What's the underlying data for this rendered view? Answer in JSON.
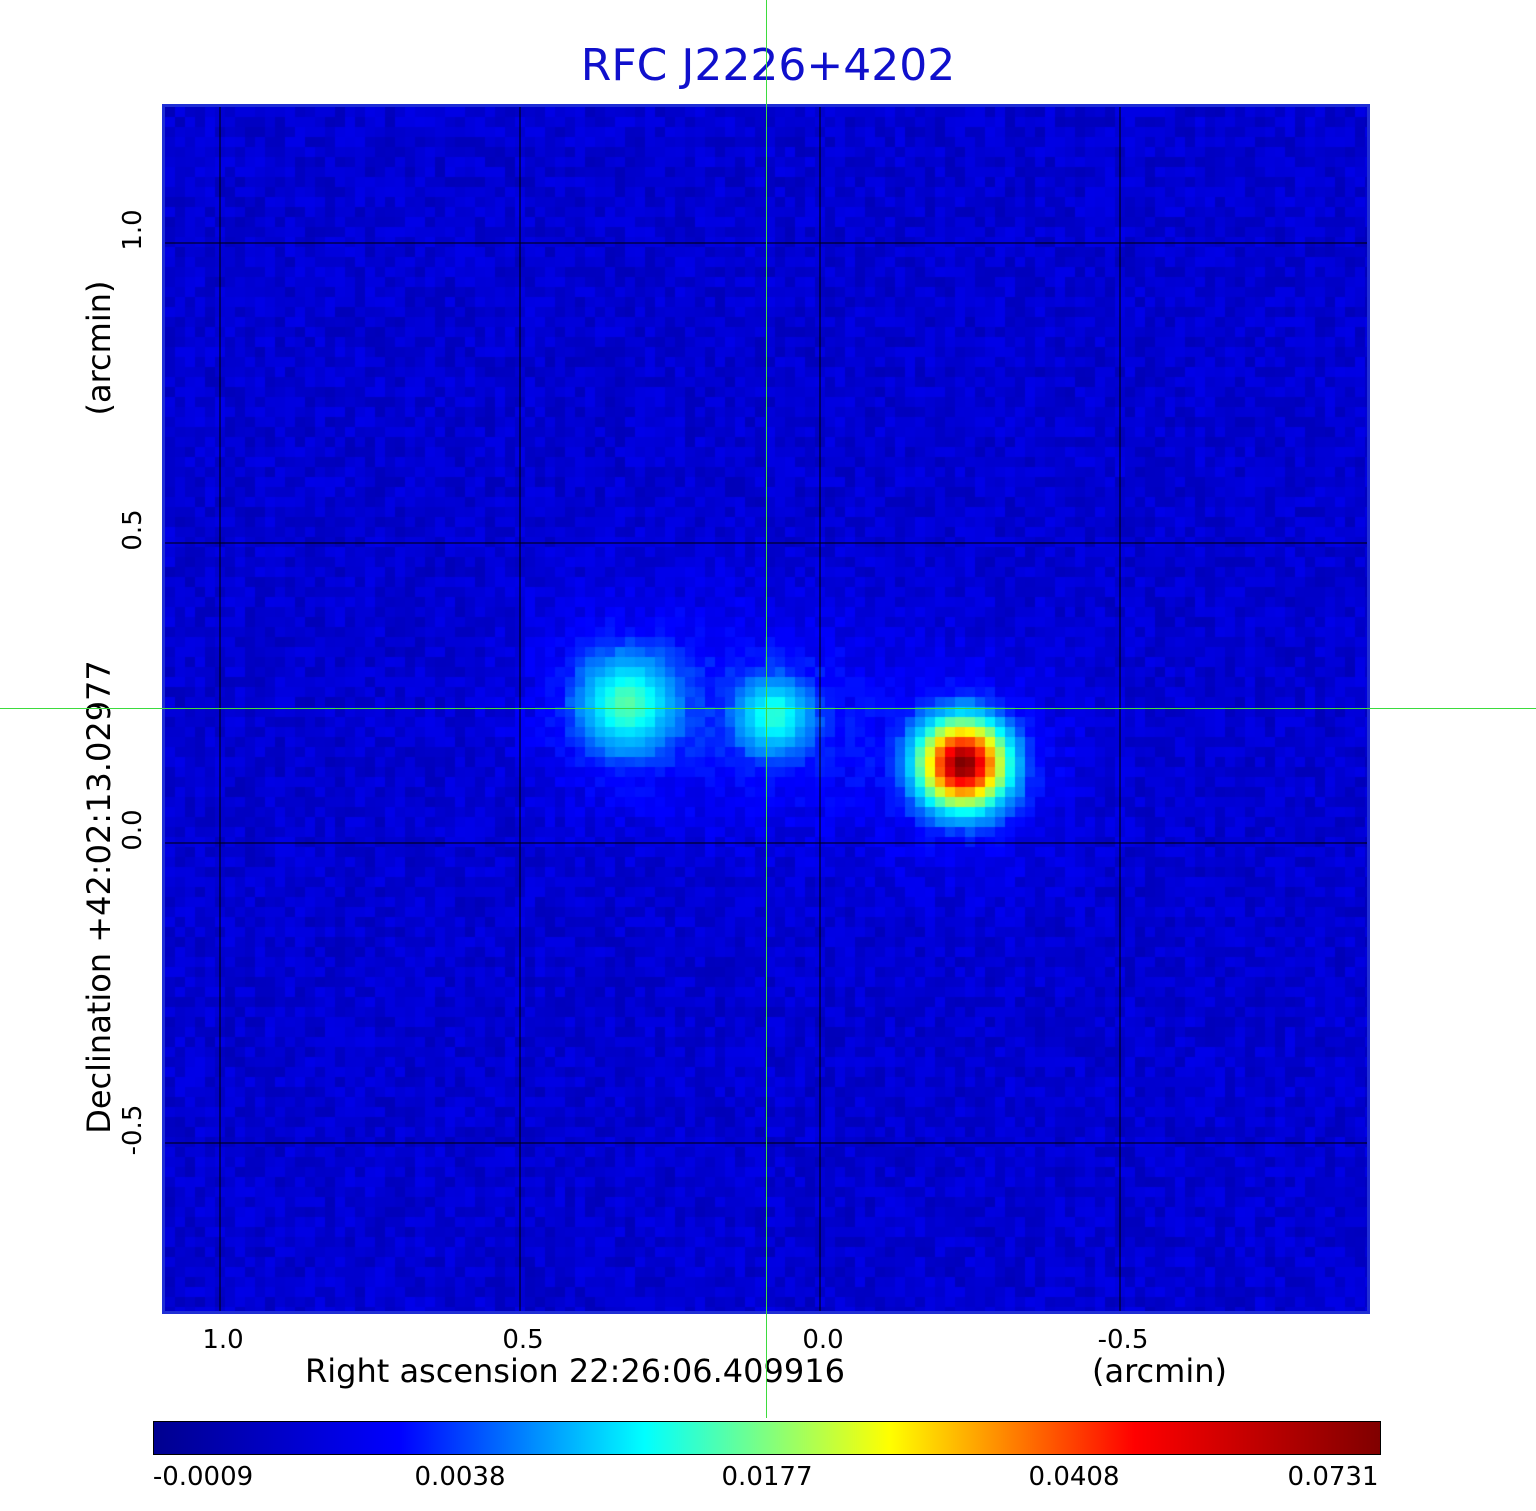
{
  "title": "RFC J2226+4202",
  "x_axis": {
    "label": "Right ascension  22:26:06.409916",
    "unit": "(arcmin)",
    "ticks": [
      "1.0",
      "0.5",
      "0.0",
      "-0.5"
    ]
  },
  "y_axis": {
    "label": "Declination  +42:02:13.02977",
    "unit": "(arcmin)",
    "ticks": [
      "1.0",
      "0.5",
      "0.0",
      "-0.5"
    ]
  },
  "colorbar": {
    "ticks": [
      "-0.0009",
      "0.0038",
      "0.0177",
      "0.0408",
      "0.0731"
    ],
    "colors": [
      "#00008f",
      "#0000ff",
      "#00ffff",
      "#ffff00",
      "#ff0000",
      "#800000"
    ]
  },
  "chart_data": {
    "type": "heatmap",
    "title": "RFC J2226+4202",
    "xlabel": "Right ascension  22:26:06.409916 (arcmin)",
    "ylabel": "Declination  +42:02:13.02977 (arcmin)",
    "xlim": [
      1.09,
      -0.92
    ],
    "ylim": [
      -0.79,
      1.22
    ],
    "colormap": "jet",
    "color_range": [
      -0.0009,
      0.0731
    ],
    "grid": true,
    "crosshair": {
      "x": 0.085,
      "y": 0.22
    },
    "sources": [
      {
        "x": 0.33,
        "y": 0.24,
        "peak": 0.014
      },
      {
        "x": 0.085,
        "y": 0.22,
        "peak": 0.012
      },
      {
        "x": -0.23,
        "y": 0.14,
        "peak": 0.0731
      }
    ]
  }
}
